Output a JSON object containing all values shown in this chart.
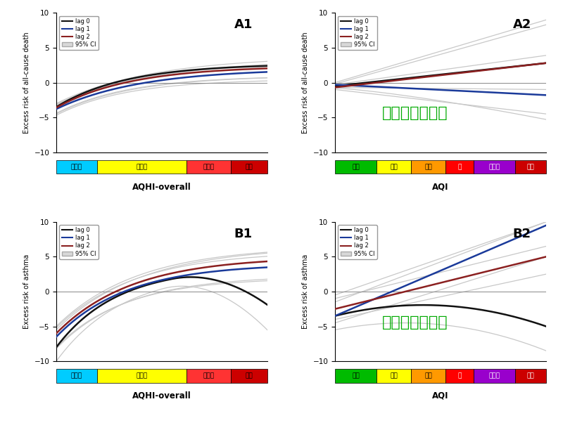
{
  "panels": [
    {
      "label": "A1",
      "ylabel": "Excess risk of all-cause death",
      "xlabel": "AQHI-overall",
      "xtype": "AQHI",
      "ylim": [
        -10,
        10
      ],
      "annotation": null
    },
    {
      "label": "A2",
      "ylabel": "Excess risk of all-cause death",
      "xlabel": "AQI",
      "xtype": "AQI",
      "ylim": [
        -10,
        10
      ],
      "annotation": "高污染代表性差"
    },
    {
      "label": "B1",
      "ylabel": "Excess risk of asthma",
      "xlabel": "AQHI-overall",
      "xtype": "AQHI",
      "ylim": [
        -10,
        10
      ],
      "annotation": null
    },
    {
      "label": "B2",
      "ylabel": "Excess risk of asthma",
      "xlabel": "AQI",
      "xtype": "AQI",
      "ylim": [
        -10,
        10
      ],
      "annotation": "高污染代表性差"
    }
  ],
  "aqhi_segments": [
    {
      "label": "低風险",
      "color": "#00ccff",
      "text_color": "#000000",
      "prop": 1.0
    },
    {
      "label": "中風险",
      "color": "#ffff00",
      "text_color": "#000000",
      "prop": 2.2
    },
    {
      "label": "高風险",
      "color": "#ff3333",
      "text_color": "#000000",
      "prop": 1.1
    },
    {
      "label": "超高",
      "color": "#cc0000",
      "text_color": "#000000",
      "prop": 0.9
    }
  ],
  "aqi_segments": [
    {
      "label": "良好",
      "color": "#00bb00",
      "text_color": "#000000",
      "prop": 1.2
    },
    {
      "label": "普通",
      "color": "#ffff00",
      "text_color": "#000000",
      "prop": 1.0
    },
    {
      "label": "尚可",
      "color": "#ff9900",
      "text_color": "#000000",
      "prop": 1.0
    },
    {
      "label": "差",
      "color": "#ff0000",
      "text_color": "#ffffff",
      "prop": 0.8
    },
    {
      "label": "非常差",
      "color": "#9900cc",
      "text_color": "#ffffff",
      "prop": 1.2
    },
    {
      "label": "危害",
      "color": "#cc0000",
      "text_color": "#ffffff",
      "prop": 0.9
    }
  ],
  "annotation_color": "#00aa00",
  "annotation_fontsize": 16,
  "main_colors": {
    "lag0": "#111111",
    "lag1": "#1a3a9a",
    "lag2": "#8b2020"
  },
  "ci_color": "#c8c8c8",
  "main_lw": 1.8,
  "ci_lw": 0.9
}
